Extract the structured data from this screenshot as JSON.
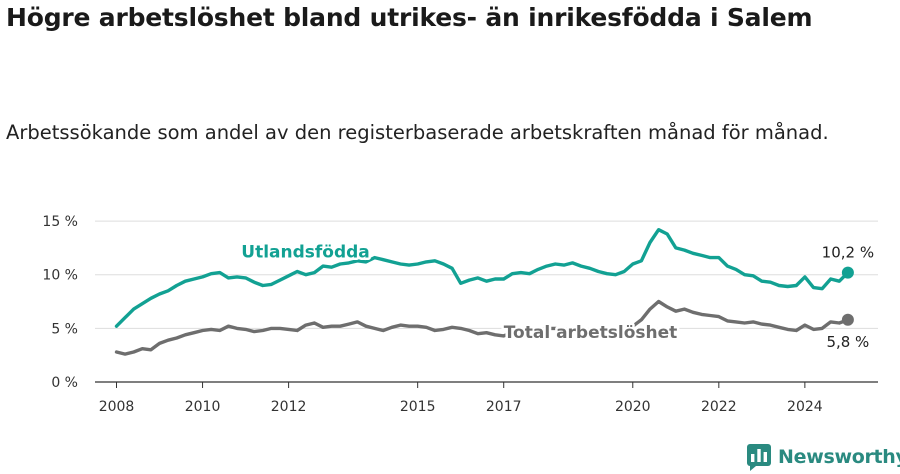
{
  "title": "Högre arbetslöshet bland utrikes- än inrikesfödda i Salem",
  "subtitle": "Arbetssökande som andel av den registerbaserade arbetskraften månad för månad.",
  "brand": {
    "name": "Newsworthy",
    "icon": "newsworthy-logo-icon",
    "color": "#2a8a80"
  },
  "chart_data": {
    "type": "line",
    "xlabel": "",
    "ylabel": "",
    "xlim": [
      2007.5,
      2025.7
    ],
    "ylim": [
      0,
      16.5
    ],
    "y_ticks": [
      0,
      5,
      10,
      15
    ],
    "y_tick_labels": [
      "0 %",
      "5 %",
      "10 %",
      "15 %"
    ],
    "x_ticks": [
      2008,
      2010,
      2012,
      2015,
      2017,
      2020,
      2022,
      2024
    ],
    "x_tick_labels": [
      "2008",
      "2010",
      "2012",
      "2015",
      "2017",
      "2020",
      "2022",
      "2024"
    ],
    "grid": true,
    "legend": "inline labels",
    "series": [
      {
        "name": "Utlandsfödda",
        "color": "#12a193",
        "label_x": 2010.9,
        "label_y": 11.6,
        "end_label": "10,2 %",
        "points": [
          [
            2008.0,
            5.2
          ],
          [
            2008.2,
            6.0
          ],
          [
            2008.4,
            6.8
          ],
          [
            2008.6,
            7.3
          ],
          [
            2008.8,
            7.8
          ],
          [
            2009.0,
            8.2
          ],
          [
            2009.2,
            8.5
          ],
          [
            2009.4,
            9.0
          ],
          [
            2009.6,
            9.4
          ],
          [
            2009.8,
            9.6
          ],
          [
            2010.0,
            9.8
          ],
          [
            2010.2,
            10.1
          ],
          [
            2010.4,
            10.2
          ],
          [
            2010.6,
            9.7
          ],
          [
            2010.8,
            9.8
          ],
          [
            2011.0,
            9.7
          ],
          [
            2011.2,
            9.3
          ],
          [
            2011.4,
            9.0
          ],
          [
            2011.6,
            9.1
          ],
          [
            2011.8,
            9.5
          ],
          [
            2012.0,
            9.9
          ],
          [
            2012.2,
            10.3
          ],
          [
            2012.4,
            10.0
          ],
          [
            2012.6,
            10.2
          ],
          [
            2012.8,
            10.8
          ],
          [
            2013.0,
            10.7
          ],
          [
            2013.2,
            11.0
          ],
          [
            2013.4,
            11.1
          ],
          [
            2013.6,
            11.3
          ],
          [
            2013.8,
            11.2
          ],
          [
            2014.0,
            11.6
          ],
          [
            2014.2,
            11.4
          ],
          [
            2014.4,
            11.2
          ],
          [
            2014.6,
            11.0
          ],
          [
            2014.8,
            10.9
          ],
          [
            2015.0,
            11.0
          ],
          [
            2015.2,
            11.2
          ],
          [
            2015.4,
            11.3
          ],
          [
            2015.6,
            11.0
          ],
          [
            2015.8,
            10.6
          ],
          [
            2016.0,
            9.2
          ],
          [
            2016.2,
            9.5
          ],
          [
            2016.4,
            9.7
          ],
          [
            2016.6,
            9.4
          ],
          [
            2016.8,
            9.6
          ],
          [
            2017.0,
            9.6
          ],
          [
            2017.2,
            10.1
          ],
          [
            2017.4,
            10.2
          ],
          [
            2017.6,
            10.1
          ],
          [
            2017.8,
            10.5
          ],
          [
            2018.0,
            10.8
          ],
          [
            2018.2,
            11.0
          ],
          [
            2018.4,
            10.9
          ],
          [
            2018.6,
            11.1
          ],
          [
            2018.8,
            10.8
          ],
          [
            2019.0,
            10.6
          ],
          [
            2019.2,
            10.3
          ],
          [
            2019.4,
            10.1
          ],
          [
            2019.6,
            10.0
          ],
          [
            2019.8,
            10.3
          ],
          [
            2020.0,
            11.0
          ],
          [
            2020.2,
            11.3
          ],
          [
            2020.4,
            13.0
          ],
          [
            2020.6,
            14.2
          ],
          [
            2020.8,
            13.8
          ],
          [
            2021.0,
            12.5
          ],
          [
            2021.2,
            12.3
          ],
          [
            2021.4,
            12.0
          ],
          [
            2021.6,
            11.8
          ],
          [
            2021.8,
            11.6
          ],
          [
            2022.0,
            11.6
          ],
          [
            2022.2,
            10.8
          ],
          [
            2022.4,
            10.5
          ],
          [
            2022.6,
            10.0
          ],
          [
            2022.8,
            9.9
          ],
          [
            2023.0,
            9.4
          ],
          [
            2023.2,
            9.3
          ],
          [
            2023.4,
            9.0
          ],
          [
            2023.6,
            8.9
          ],
          [
            2023.8,
            9.0
          ],
          [
            2024.0,
            9.8
          ],
          [
            2024.2,
            8.8
          ],
          [
            2024.4,
            8.7
          ],
          [
            2024.6,
            9.6
          ],
          [
            2024.8,
            9.4
          ],
          [
            2025.0,
            10.2
          ]
        ]
      },
      {
        "name": "Total arbetslöshet",
        "color": "#6e6e6e",
        "label_x": 2017.0,
        "label_y": 4.1,
        "end_label": "5,8 %",
        "points": [
          [
            2008.0,
            2.8
          ],
          [
            2008.2,
            2.6
          ],
          [
            2008.4,
            2.8
          ],
          [
            2008.6,
            3.1
          ],
          [
            2008.8,
            3.0
          ],
          [
            2009.0,
            3.6
          ],
          [
            2009.2,
            3.9
          ],
          [
            2009.4,
            4.1
          ],
          [
            2009.6,
            4.4
          ],
          [
            2009.8,
            4.6
          ],
          [
            2010.0,
            4.8
          ],
          [
            2010.2,
            4.9
          ],
          [
            2010.4,
            4.8
          ],
          [
            2010.6,
            5.2
          ],
          [
            2010.8,
            5.0
          ],
          [
            2011.0,
            4.9
          ],
          [
            2011.2,
            4.7
          ],
          [
            2011.4,
            4.8
          ],
          [
            2011.6,
            5.0
          ],
          [
            2011.8,
            5.0
          ],
          [
            2012.0,
            4.9
          ],
          [
            2012.2,
            4.8
          ],
          [
            2012.4,
            5.3
          ],
          [
            2012.6,
            5.5
          ],
          [
            2012.8,
            5.1
          ],
          [
            2013.0,
            5.2
          ],
          [
            2013.2,
            5.2
          ],
          [
            2013.4,
            5.4
          ],
          [
            2013.6,
            5.6
          ],
          [
            2013.8,
            5.2
          ],
          [
            2014.0,
            5.0
          ],
          [
            2014.2,
            4.8
          ],
          [
            2014.4,
            5.1
          ],
          [
            2014.6,
            5.3
          ],
          [
            2014.8,
            5.2
          ],
          [
            2015.0,
            5.2
          ],
          [
            2015.2,
            5.1
          ],
          [
            2015.4,
            4.8
          ],
          [
            2015.6,
            4.9
          ],
          [
            2015.8,
            5.1
          ],
          [
            2016.0,
            5.0
          ],
          [
            2016.2,
            4.8
          ],
          [
            2016.4,
            4.5
          ],
          [
            2016.6,
            4.6
          ],
          [
            2016.8,
            4.4
          ],
          [
            2017.0,
            4.3
          ],
          [
            2017.2,
            4.6
          ],
          [
            2017.4,
            4.8
          ],
          [
            2017.6,
            4.7
          ],
          [
            2017.8,
            4.9
          ],
          [
            2018.0,
            5.0
          ],
          [
            2018.2,
            5.0
          ],
          [
            2018.4,
            4.9
          ],
          [
            2018.6,
            5.0
          ],
          [
            2018.8,
            4.8
          ],
          [
            2019.0,
            4.8
          ],
          [
            2019.2,
            4.6
          ],
          [
            2019.4,
            4.5
          ],
          [
            2019.6,
            4.5
          ],
          [
            2019.8,
            4.8
          ],
          [
            2020.0,
            5.2
          ],
          [
            2020.2,
            5.8
          ],
          [
            2020.4,
            6.8
          ],
          [
            2020.6,
            7.5
          ],
          [
            2020.8,
            7.0
          ],
          [
            2021.0,
            6.6
          ],
          [
            2021.2,
            6.8
          ],
          [
            2021.4,
            6.5
          ],
          [
            2021.6,
            6.3
          ],
          [
            2021.8,
            6.2
          ],
          [
            2022.0,
            6.1
          ],
          [
            2022.2,
            5.7
          ],
          [
            2022.4,
            5.6
          ],
          [
            2022.6,
            5.5
          ],
          [
            2022.8,
            5.6
          ],
          [
            2023.0,
            5.4
          ],
          [
            2023.2,
            5.3
          ],
          [
            2023.4,
            5.1
          ],
          [
            2023.6,
            4.9
          ],
          [
            2023.8,
            4.8
          ],
          [
            2024.0,
            5.3
          ],
          [
            2024.2,
            4.9
          ],
          [
            2024.4,
            5.0
          ],
          [
            2024.6,
            5.6
          ],
          [
            2024.8,
            5.5
          ],
          [
            2025.0,
            5.8
          ]
        ]
      }
    ]
  }
}
